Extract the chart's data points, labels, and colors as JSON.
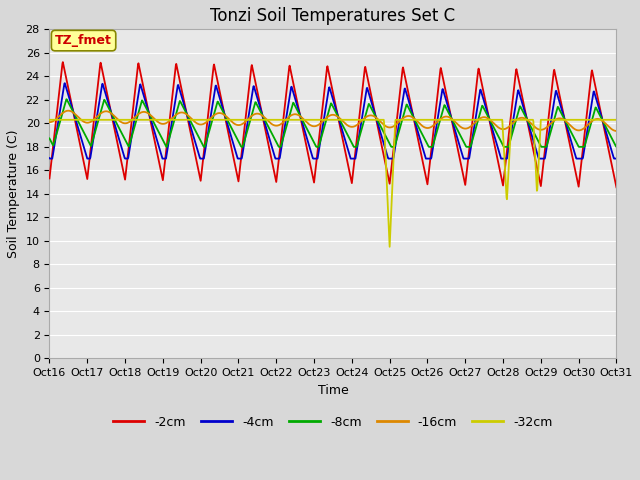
{
  "title": "Tonzi Soil Temperatures Set C",
  "xlabel": "Time",
  "ylabel": "Soil Temperature (C)",
  "ylim": [
    0,
    28
  ],
  "yticks": [
    0,
    2,
    4,
    6,
    8,
    10,
    12,
    14,
    16,
    18,
    20,
    22,
    24,
    26,
    28
  ],
  "x_labels": [
    "Oct 16",
    "Oct 17",
    "Oct 18",
    "Oct 19",
    "Oct 20",
    "Oct 21",
    "Oct 22",
    "Oct 23",
    "Oct 24",
    "Oct 25",
    "Oct 26",
    "Oct 27",
    "Oct 28",
    "Oct 29",
    "Oct 30",
    "Oct 31"
  ],
  "compact_labels": [
    "Oct16",
    "Oct17",
    "Oct18",
    "Oct19",
    "Oct20",
    "Oct21",
    "Oct22",
    "Oct23",
    "Oct24",
    "Oct25",
    "Oct26",
    "Oct27",
    "Oct28",
    "Oct29",
    "Oct30",
    "Oct31"
  ],
  "annotation_text": "TZ_fmet",
  "annotation_color": "#cc0000",
  "annotation_bg": "#ffff99",
  "series": [
    {
      "label": "-2cm",
      "color": "#dd0000"
    },
    {
      "label": "-4cm",
      "color": "#0000cc"
    },
    {
      "label": "-8cm",
      "color": "#00aa00"
    },
    {
      "label": "-16cm",
      "color": "#dd8800"
    },
    {
      "label": "-32cm",
      "color": "#cccc00"
    }
  ],
  "background_color": "#e8e8e8",
  "grid_color": "#ffffff",
  "title_fontsize": 12,
  "axis_label_fontsize": 9,
  "tick_fontsize": 8,
  "figsize": [
    6.4,
    4.8
  ],
  "dpi": 100
}
